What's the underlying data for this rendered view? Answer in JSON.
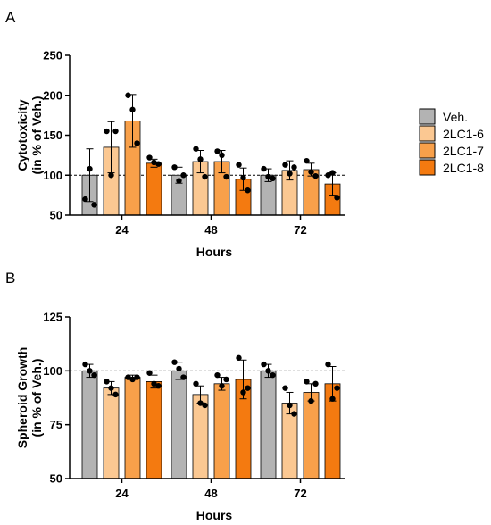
{
  "legend": [
    {
      "label": "Veh.",
      "color": "#b3b3b3"
    },
    {
      "label": "2LC1-6",
      "color": "#fbc892"
    },
    {
      "label": "2LC1-7",
      "color": "#f8a04a"
    },
    {
      "label": "2LC1-8",
      "color": "#f47a10"
    }
  ],
  "chart_data": [
    {
      "type": "bar",
      "panel_label": "A",
      "title": "",
      "xlabel": "Hours",
      "ylabel": [
        "Cytotoxicity",
        "(in % of Veh.)"
      ],
      "categories": [
        "24",
        "48",
        "72"
      ],
      "ylim": [
        50,
        250
      ],
      "yticks": [
        50,
        100,
        150,
        200,
        250
      ],
      "reference_line": 100,
      "series": [
        {
          "name": "Veh.",
          "values": [
            100,
            100,
            100
          ],
          "errors": [
            33,
            10,
            8
          ],
          "points": [
            [
              70,
              108,
              63
            ],
            [
              110,
              93,
              100
            ],
            [
              108,
              98,
              96
            ]
          ]
        },
        {
          "name": "2LC1-6",
          "values": [
            135,
            117,
            106
          ],
          "errors": [
            32,
            14,
            12
          ],
          "points": [
            [
              155,
              100,
              155
            ],
            [
              133,
              120,
              98
            ],
            [
              113,
              102,
              110
            ]
          ]
        },
        {
          "name": "2LC1-7",
          "values": [
            168,
            117,
            107
          ],
          "errors": [
            33,
            14,
            8
          ],
          "points": [
            [
              200,
              182,
              140
            ],
            [
              130,
              125,
              98
            ],
            [
              118,
              104,
              99
            ]
          ]
        },
        {
          "name": "2LC1-8",
          "values": [
            115,
            95,
            89
          ],
          "errors": [
            5,
            14,
            14
          ],
          "points": [
            [
              122,
              116,
              114
            ],
            [
              113,
              97,
              81
            ],
            [
              100,
              103,
              72
            ]
          ]
        }
      ]
    },
    {
      "type": "bar",
      "panel_label": "B",
      "title": "",
      "xlabel": "Hours",
      "ylabel": [
        "Spheroid Growth",
        "(in % of Veh.)"
      ],
      "categories": [
        "24",
        "48",
        "72"
      ],
      "ylim": [
        50,
        125
      ],
      "yticks": [
        50,
        75,
        100,
        125
      ],
      "reference_line": 100,
      "series": [
        {
          "name": "Veh.",
          "values": [
            100,
            100,
            100
          ],
          "errors": [
            3,
            4,
            3
          ],
          "points": [
            [
              103,
              100,
              98
            ],
            [
              104,
              101,
              97
            ],
            [
              103,
              100,
              98
            ]
          ]
        },
        {
          "name": "2LC1-6",
          "values": [
            92,
            89,
            85
          ],
          "errors": [
            3,
            4,
            5
          ],
          "points": [
            [
              95,
              92,
              89
            ],
            [
              94,
              85,
              84
            ],
            [
              92,
              84,
              80
            ]
          ]
        },
        {
          "name": "2LC1-7",
          "values": [
            97,
            94,
            90
          ],
          "errors": [
            1,
            3,
            4
          ],
          "points": [
            [
              97,
              96,
              97
            ],
            [
              98,
              93,
              96
            ],
            [
              95,
              86,
              94
            ]
          ]
        },
        {
          "name": "2LC1-8",
          "values": [
            95,
            96,
            94
          ],
          "errors": [
            3,
            9,
            8
          ],
          "points": [
            [
              99,
              94,
              93
            ],
            [
              106,
              90,
              92
            ],
            [
              103,
              87,
              92
            ]
          ]
        }
      ]
    }
  ]
}
